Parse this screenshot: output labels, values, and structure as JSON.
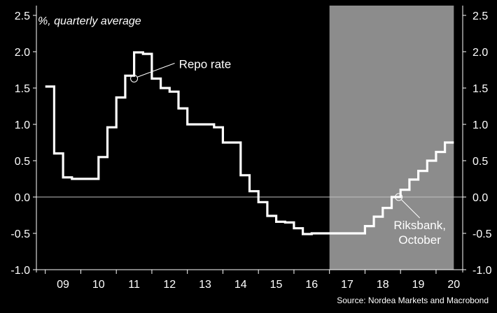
{
  "chart_data": {
    "type": "line",
    "style": "step",
    "subtitle": "%, quarterly average",
    "source": "Source: Nordea Markets and Macrobond",
    "xlabel": "",
    "ylabel": "",
    "ylim": [
      -1.0,
      2.5
    ],
    "yticks": [
      -1.0,
      -0.5,
      0.0,
      0.5,
      1.0,
      1.5,
      2.0,
      2.5
    ],
    "ytick_labels": [
      "-1.0",
      "-0.5",
      "0.0",
      "0.5",
      "1.0",
      "1.5",
      "2.0",
      "2.5"
    ],
    "xlim": [
      2008.75,
      2020.75
    ],
    "x_tick_labels": [
      "09",
      "10",
      "11",
      "12",
      "13",
      "14",
      "15",
      "16",
      "17",
      "18",
      "19",
      "20"
    ],
    "forecast_shade": [
      2017.0,
      2020.5
    ],
    "grid": false,
    "zero_line": true,
    "colors": {
      "background": "#000000",
      "line": "#ffffff",
      "forecast_area": "#8c8c8c",
      "axis": "#ffffff",
      "zero_line": "#bfbfbf"
    },
    "series": [
      {
        "x": [
          2009.0,
          2009.25,
          2009.5,
          2009.75,
          2010.0,
          2010.25,
          2010.5,
          2010.75,
          2011.0,
          2011.25,
          2011.5,
          2011.75,
          2012.0,
          2012.25,
          2012.5,
          2012.75,
          2013.0,
          2013.25,
          2013.5,
          2013.75,
          2014.0,
          2014.25,
          2014.5,
          2014.75,
          2015.0,
          2015.25,
          2015.5,
          2015.75,
          2016.0,
          2016.25,
          2016.5,
          2016.75,
          2017.0,
          2017.25,
          2017.5,
          2017.75,
          2018.0,
          2018.25,
          2018.5,
          2018.75,
          2019.0,
          2019.25,
          2019.5,
          2019.75,
          2020.0,
          2020.25
        ],
        "values": [
          1.52,
          0.6,
          0.27,
          0.25,
          0.25,
          0.25,
          0.55,
          0.96,
          1.37,
          1.67,
          1.99,
          1.97,
          1.63,
          1.5,
          1.45,
          1.22,
          1.0,
          1.0,
          1.0,
          0.96,
          0.75,
          0.75,
          0.3,
          0.08,
          -0.07,
          -0.26,
          -0.34,
          -0.35,
          -0.43,
          -0.51,
          -0.5,
          -0.5,
          -0.5,
          -0.5,
          -0.5,
          -0.5,
          -0.4,
          -0.27,
          -0.15,
          0.0,
          0.1,
          0.24,
          0.36,
          0.5,
          0.62,
          0.75
        ]
      }
    ],
    "annotations": [
      {
        "text": "Repo rate",
        "x": 2011.5,
        "y": 1.63
      },
      {
        "lines": [
          "Riksbank,",
          "October"
        ],
        "x": 2018.95,
        "y": 0.0
      }
    ]
  }
}
